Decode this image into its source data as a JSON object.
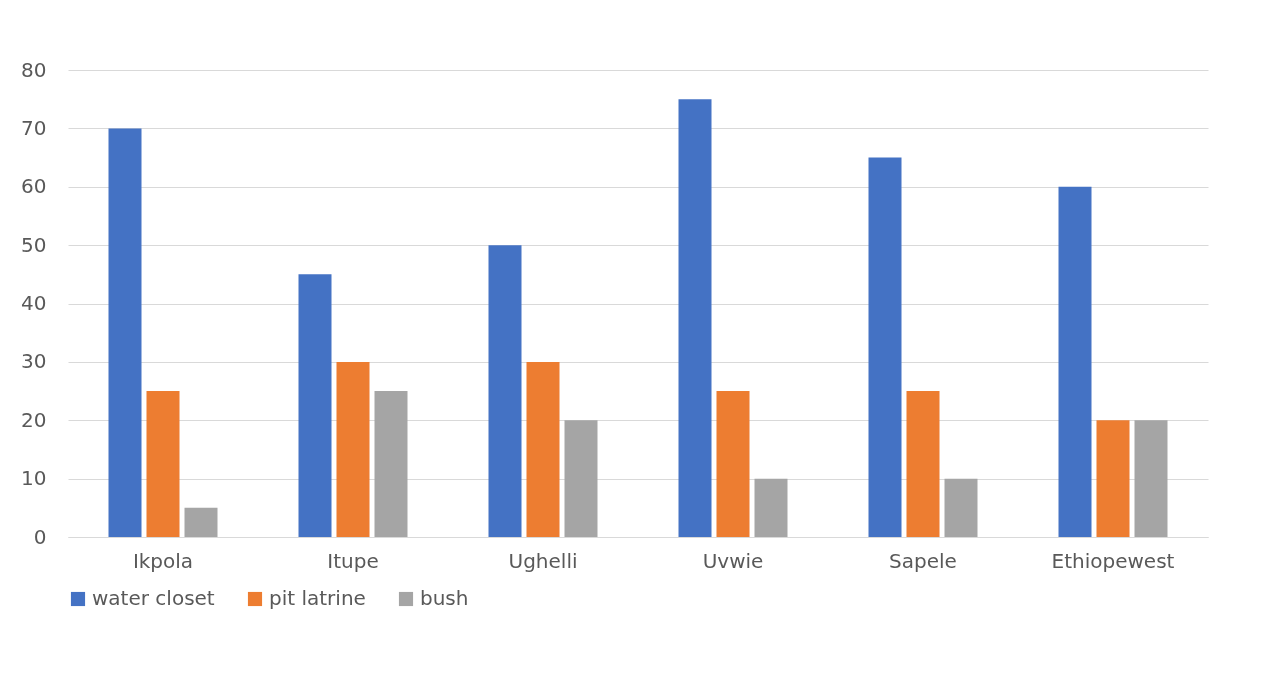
{
  "chart_data": {
    "type": "bar",
    "categories": [
      "Ikpola",
      "Itupe",
      "Ughelli",
      "Uvwie",
      "Sapele",
      "Ethiopewest"
    ],
    "series": [
      {
        "name": "water closet",
        "color": "#4472c4",
        "values": [
          70,
          45,
          50,
          75,
          65,
          60
        ]
      },
      {
        "name": "pit latrine",
        "color": "#ed7d31",
        "values": [
          25,
          30,
          30,
          25,
          25,
          20
        ]
      },
      {
        "name": "bush",
        "color": "#a5a5a5",
        "values": [
          5,
          25,
          20,
          10,
          10,
          20
        ]
      }
    ],
    "ylim": [
      0,
      80
    ],
    "yticks": [
      0,
      10,
      20,
      30,
      40,
      50,
      60,
      70,
      80
    ],
    "grid": "y",
    "legend": "bottom"
  }
}
